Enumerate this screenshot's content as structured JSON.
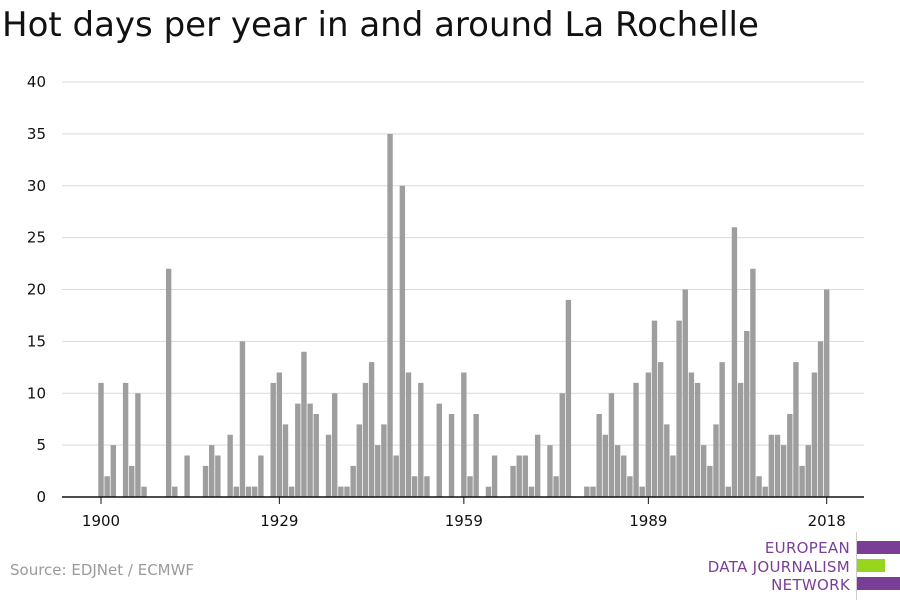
{
  "title": "Hot days per year in and around La Rochelle",
  "source": "Source: EDJNet / ECMWF",
  "logo": {
    "lines": [
      "EUROPEAN",
      "DATA JOURNALISM",
      "NETWORK"
    ],
    "text_color": "#7b3e97",
    "bar_colors": [
      "#7b3e97",
      "#97d51e",
      "#7b3e97"
    ]
  },
  "colors": {
    "bar": "#9e9e9e",
    "grid": "#d9d9d9",
    "axis": "#111111",
    "tick_text": "#111111"
  },
  "chart_data": {
    "type": "bar",
    "title": "Hot days per year in and around La Rochelle",
    "xlabel": "",
    "ylabel": "",
    "ylim": [
      0,
      40
    ],
    "yticks": [
      0,
      5,
      10,
      15,
      20,
      25,
      30,
      35,
      40
    ],
    "xticks": [
      1900,
      1929,
      1959,
      1989,
      2018
    ],
    "grid": true,
    "x": [
      1900,
      1901,
      1902,
      1903,
      1904,
      1905,
      1906,
      1907,
      1908,
      1909,
      1910,
      1911,
      1912,
      1913,
      1914,
      1915,
      1916,
      1917,
      1918,
      1919,
      1920,
      1921,
      1922,
      1923,
      1924,
      1925,
      1926,
      1927,
      1928,
      1929,
      1930,
      1931,
      1932,
      1933,
      1934,
      1935,
      1936,
      1937,
      1938,
      1939,
      1940,
      1941,
      1942,
      1943,
      1944,
      1945,
      1946,
      1947,
      1948,
      1949,
      1950,
      1951,
      1952,
      1953,
      1954,
      1955,
      1956,
      1957,
      1958,
      1959,
      1960,
      1961,
      1962,
      1963,
      1964,
      1965,
      1966,
      1967,
      1968,
      1969,
      1970,
      1971,
      1972,
      1973,
      1974,
      1975,
      1976,
      1977,
      1978,
      1979,
      1980,
      1981,
      1982,
      1983,
      1984,
      1985,
      1986,
      1987,
      1988,
      1989,
      1990,
      1991,
      1992,
      1993,
      1994,
      1995,
      1996,
      1997,
      1998,
      1999,
      2000,
      2001,
      2002,
      2003,
      2004,
      2005,
      2006,
      2007,
      2008,
      2009,
      2010,
      2011,
      2012,
      2013,
      2014,
      2015,
      2016,
      2017,
      2018
    ],
    "values": [
      11,
      2,
      5,
      0,
      11,
      3,
      10,
      1,
      0,
      0,
      0,
      22,
      1,
      0,
      4,
      0,
      0,
      3,
      5,
      4,
      0,
      6,
      1,
      15,
      1,
      1,
      4,
      0,
      11,
      12,
      7,
      1,
      9,
      14,
      9,
      8,
      0,
      6,
      10,
      1,
      1,
      3,
      7,
      11,
      13,
      5,
      7,
      35,
      4,
      30,
      12,
      2,
      11,
      2,
      0,
      9,
      0,
      8,
      0,
      12,
      2,
      8,
      0,
      1,
      4,
      0,
      0,
      3,
      4,
      4,
      1,
      6,
      0,
      5,
      2,
      10,
      19,
      0,
      0,
      1,
      1,
      8,
      6,
      10,
      5,
      4,
      2,
      11,
      1,
      12,
      17,
      13,
      7,
      4,
      17,
      20,
      12,
      11,
      5,
      3,
      7,
      13,
      1,
      26,
      11,
      16,
      22,
      2,
      1,
      6,
      6,
      5,
      8,
      13,
      3,
      5,
      12,
      15,
      20
    ]
  }
}
